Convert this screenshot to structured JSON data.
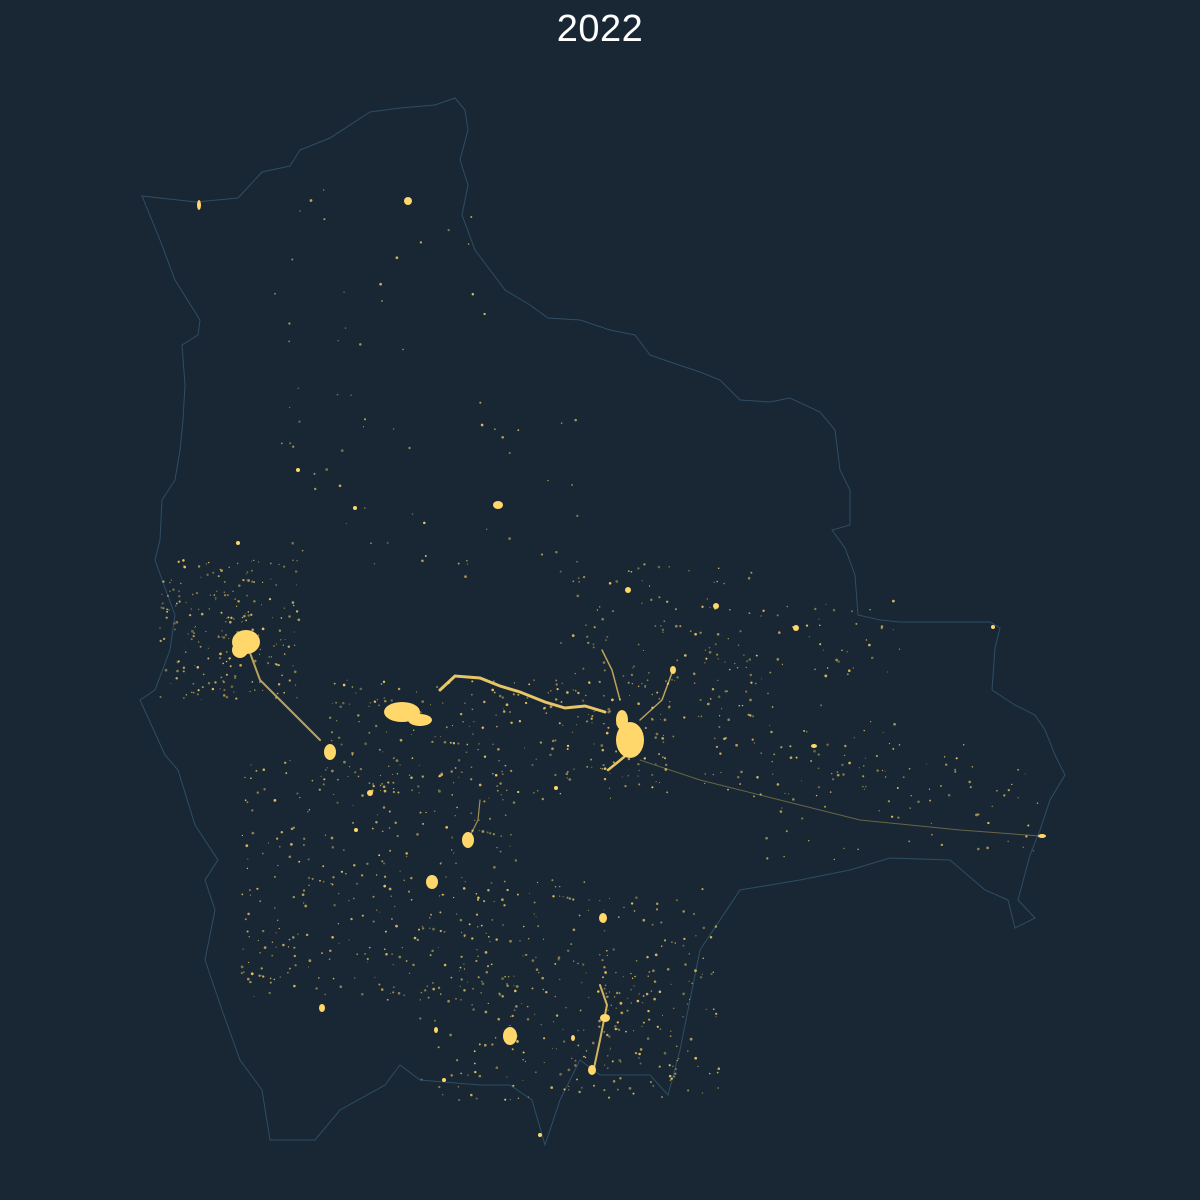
{
  "title": "2022",
  "colors": {
    "background": "#182733",
    "border": "#2e4d66",
    "lights": "#ffd76a",
    "title": "#ffffff"
  }
}
